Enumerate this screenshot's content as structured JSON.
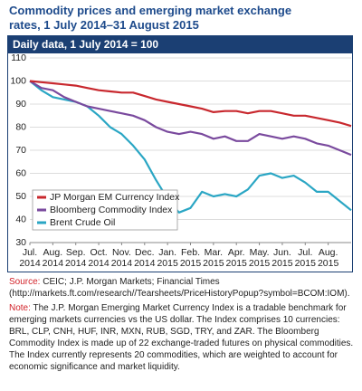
{
  "chart_data": {
    "type": "line",
    "title": "Commodity prices and emerging market exchange rates, 1 July 2014–31 August 2015",
    "subtitle": "Daily data, 1 July 2014 = 100",
    "x": [
      0,
      0.5,
      1,
      1.5,
      2,
      2.5,
      3,
      3.5,
      4,
      4.5,
      5,
      5.5,
      6,
      6.5,
      7,
      7.5,
      8,
      8.5,
      9,
      9.5,
      10,
      10.5,
      11,
      11.5,
      12,
      12.5,
      13,
      13.5,
      14
    ],
    "series": [
      {
        "name": "JP Morgan EM Currency Index",
        "color": "#c8282e",
        "values": [
          100,
          99.5,
          99,
          98.5,
          98,
          97,
          96,
          95.5,
          95,
          95,
          93.5,
          92,
          91,
          90,
          89,
          88,
          86.5,
          87,
          87,
          86,
          87,
          87,
          86,
          85,
          85,
          84,
          83,
          82,
          80.5
        ]
      },
      {
        "name": "Bloomberg Commodity Index",
        "color": "#7a4a9e",
        "values": [
          100,
          97,
          96,
          93,
          91,
          89,
          88,
          87,
          86,
          85,
          83,
          80,
          78,
          77,
          78,
          77,
          75,
          76,
          74,
          74,
          77,
          76,
          75,
          76,
          75,
          73,
          72,
          70,
          68
        ]
      },
      {
        "name": "Brent Crude Oil",
        "color": "#2aa6c4",
        "values": [
          100,
          96,
          93,
          92,
          91,
          89,
          85,
          80,
          77,
          72,
          66,
          57,
          49,
          43,
          45,
          52,
          50,
          51,
          50,
          53,
          59,
          60,
          58,
          59,
          56,
          52,
          52,
          48,
          44
        ]
      }
    ],
    "xlim": [
      0,
      14
    ],
    "xticks": [
      {
        "value": 0,
        "label": "Jul. 2014"
      },
      {
        "value": 1,
        "label": "Aug. 2014"
      },
      {
        "value": 2,
        "label": "Sep. 2014"
      },
      {
        "value": 3,
        "label": "Oct. 2014"
      },
      {
        "value": 4,
        "label": "Nov. 2014"
      },
      {
        "value": 5,
        "label": "Dec. 2014"
      },
      {
        "value": 6,
        "label": "Jan. 2015"
      },
      {
        "value": 7,
        "label": "Feb. 2015"
      },
      {
        "value": 8,
        "label": "Mar. 2015"
      },
      {
        "value": 9,
        "label": "Apr. 2015"
      },
      {
        "value": 10,
        "label": "May. 2015"
      },
      {
        "value": 11,
        "label": "Jun. 2015"
      },
      {
        "value": 12,
        "label": "Jul. 2015"
      },
      {
        "value": 13,
        "label": "Aug. 2015"
      }
    ],
    "ylim": [
      30,
      110
    ],
    "yticks": [
      30,
      40,
      50,
      60,
      70,
      80,
      90,
      100,
      110
    ],
    "grid": true,
    "legend": "lower-left"
  },
  "source": {
    "label": "Source:",
    "text": "CEIC; J.P. Morgan Markets; Financial Times (http://markets.ft.com/research//Tearsheets/PriceHistoryPopup?symbol=BCOM:IOM)."
  },
  "note": {
    "label": "Note:",
    "text": "The J.P. Morgan Emerging Market Currency Index is a tradable benchmark for emerging markets currencies vs the US dollar. The Index comprises 10 currencies: BRL, CLP, CNH, HUF, INR, MXN, RUB, SGD, TRY, and ZAR. The Bloomberg Commodity Index is made up of 22 exchange-traded futures on physical commodities. The Index currently represents 20 commodities, which are weighted to account for economic significance and market liquidity."
  }
}
